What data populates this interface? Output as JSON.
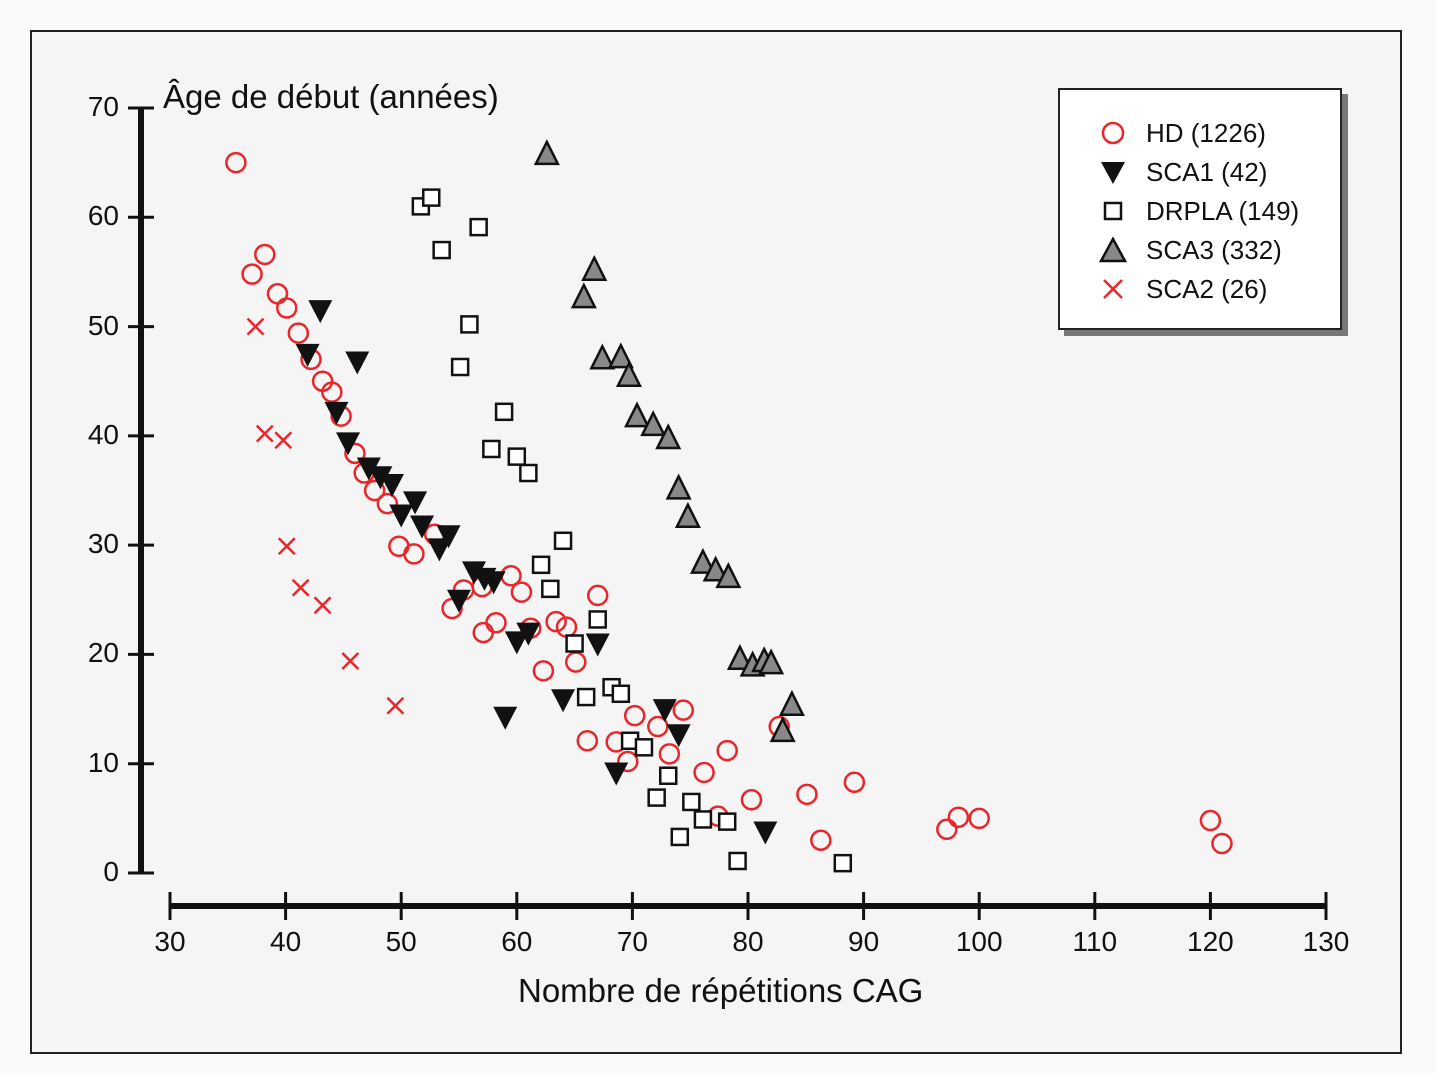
{
  "chart_data": {
    "type": "scatter",
    "title": "",
    "xlabel": "Nombre de répétitions CAG",
    "ylabel": "Âge de début (années)",
    "xlim": [
      30,
      130
    ],
    "ylim": [
      0,
      70
    ],
    "xticks": [
      30,
      40,
      50,
      60,
      70,
      80,
      90,
      100,
      110,
      120,
      130
    ],
    "yticks": [
      0,
      10,
      20,
      30,
      40,
      50,
      60,
      70
    ],
    "grid": false,
    "legend_position": "top-right",
    "series": [
      {
        "name": "HD (1226)",
        "marker": "open-circle",
        "color": "#e8262b",
        "points": [
          [
            35.7,
            65.0
          ],
          [
            37.1,
            54.8
          ],
          [
            38.2,
            56.6
          ],
          [
            39.3,
            53.0
          ],
          [
            40.1,
            51.7
          ],
          [
            41.1,
            49.4
          ],
          [
            42.2,
            47.0
          ],
          [
            43.2,
            45.0
          ],
          [
            44.0,
            44.0
          ],
          [
            44.8,
            41.8
          ],
          [
            46.0,
            38.4
          ],
          [
            46.8,
            36.6
          ],
          [
            47.7,
            35.0
          ],
          [
            48.8,
            33.8
          ],
          [
            49.8,
            29.9
          ],
          [
            51.1,
            29.2
          ],
          [
            52.9,
            31.0
          ],
          [
            54.4,
            24.2
          ],
          [
            55.4,
            25.9
          ],
          [
            57.0,
            26.2
          ],
          [
            57.1,
            22.0
          ],
          [
            58.2,
            22.9
          ],
          [
            59.5,
            27.2
          ],
          [
            60.4,
            25.7
          ],
          [
            61.2,
            22.4
          ],
          [
            62.3,
            18.5
          ],
          [
            63.4,
            23.0
          ],
          [
            64.3,
            22.5
          ],
          [
            65.1,
            19.3
          ],
          [
            66.1,
            12.1
          ],
          [
            67.0,
            25.4
          ],
          [
            68.6,
            12.0
          ],
          [
            69.6,
            10.2
          ],
          [
            70.2,
            14.4
          ],
          [
            72.2,
            13.4
          ],
          [
            73.2,
            10.9
          ],
          [
            74.4,
            14.9
          ],
          [
            76.2,
            9.2
          ],
          [
            77.4,
            5.2
          ],
          [
            78.2,
            11.2
          ],
          [
            80.3,
            6.7
          ],
          [
            82.7,
            13.4
          ],
          [
            85.1,
            7.2
          ],
          [
            86.3,
            3.0
          ],
          [
            89.2,
            8.3
          ],
          [
            97.2,
            4.0
          ],
          [
            98.2,
            5.1
          ],
          [
            100.0,
            5.0
          ],
          [
            120.0,
            4.8
          ],
          [
            121.0,
            2.7
          ]
        ]
      },
      {
        "name": "SCA1 (42)",
        "marker": "filled-down-triangle",
        "color": "#111111",
        "points": [
          [
            43.0,
            51.5
          ],
          [
            41.9,
            47.5
          ],
          [
            46.2,
            46.8
          ],
          [
            44.4,
            42.2
          ],
          [
            45.4,
            39.4
          ],
          [
            47.2,
            37.1
          ],
          [
            48.2,
            36.3
          ],
          [
            49.2,
            35.6
          ],
          [
            51.2,
            34.0
          ],
          [
            50.0,
            32.8
          ],
          [
            51.8,
            31.8
          ],
          [
            54.1,
            30.9
          ],
          [
            53.3,
            29.7
          ],
          [
            56.3,
            27.6
          ],
          [
            57.2,
            27.0
          ],
          [
            58.0,
            26.7
          ],
          [
            55.0,
            25.0
          ],
          [
            60.0,
            21.2
          ],
          [
            61.0,
            22.0
          ],
          [
            59.0,
            14.3
          ],
          [
            64.0,
            15.9
          ],
          [
            67.0,
            21.0
          ],
          [
            68.6,
            9.2
          ],
          [
            72.8,
            15.0
          ],
          [
            74.0,
            12.7
          ],
          [
            81.5,
            3.8
          ]
        ]
      },
      {
        "name": "DRPLA (149)",
        "marker": "open-square",
        "color": "#111111",
        "points": [
          [
            51.7,
            61.0
          ],
          [
            52.6,
            61.8
          ],
          [
            53.5,
            57.0
          ],
          [
            56.7,
            59.1
          ],
          [
            55.9,
            50.2
          ],
          [
            55.1,
            46.3
          ],
          [
            58.9,
            42.2
          ],
          [
            57.8,
            38.8
          ],
          [
            60.0,
            38.1
          ],
          [
            61.0,
            36.6
          ],
          [
            64.0,
            30.4
          ],
          [
            62.1,
            28.2
          ],
          [
            62.9,
            26.0
          ],
          [
            65.0,
            21.0
          ],
          [
            67.0,
            23.2
          ],
          [
            66.0,
            16.1
          ],
          [
            68.2,
            17.0
          ],
          [
            69.0,
            16.4
          ],
          [
            69.8,
            12.1
          ],
          [
            71.0,
            11.5
          ],
          [
            73.1,
            8.9
          ],
          [
            72.1,
            6.9
          ],
          [
            75.1,
            6.5
          ],
          [
            76.1,
            4.9
          ],
          [
            74.1,
            3.3
          ],
          [
            78.2,
            4.7
          ],
          [
            79.1,
            1.1
          ],
          [
            88.2,
            0.9
          ]
        ]
      },
      {
        "name": "SCA3 (332)",
        "marker": "gray-up-triangle",
        "color": "#888888",
        "points": [
          [
            62.6,
            65.8
          ],
          [
            66.7,
            55.2
          ],
          [
            65.8,
            52.7
          ],
          [
            67.4,
            47.1
          ],
          [
            69.0,
            47.2
          ],
          [
            69.7,
            45.5
          ],
          [
            70.4,
            41.8
          ],
          [
            71.8,
            41.0
          ],
          [
            73.1,
            39.8
          ],
          [
            74.0,
            35.2
          ],
          [
            74.8,
            32.6
          ],
          [
            76.1,
            28.4
          ],
          [
            77.2,
            27.7
          ],
          [
            78.3,
            27.1
          ],
          [
            79.3,
            19.6
          ],
          [
            80.4,
            19.0
          ],
          [
            81.4,
            19.4
          ],
          [
            82.0,
            19.2
          ],
          [
            83.8,
            15.4
          ],
          [
            83.0,
            13.0
          ]
        ]
      },
      {
        "name": "SCA2 (26)",
        "marker": "cross",
        "color": "#e8262b",
        "points": [
          [
            37.4,
            50.0
          ],
          [
            38.2,
            40.2
          ],
          [
            39.8,
            39.6
          ],
          [
            40.1,
            29.9
          ],
          [
            41.3,
            26.1
          ],
          [
            43.2,
            24.5
          ],
          [
            45.6,
            19.4
          ],
          [
            49.5,
            15.3
          ]
        ]
      }
    ]
  }
}
